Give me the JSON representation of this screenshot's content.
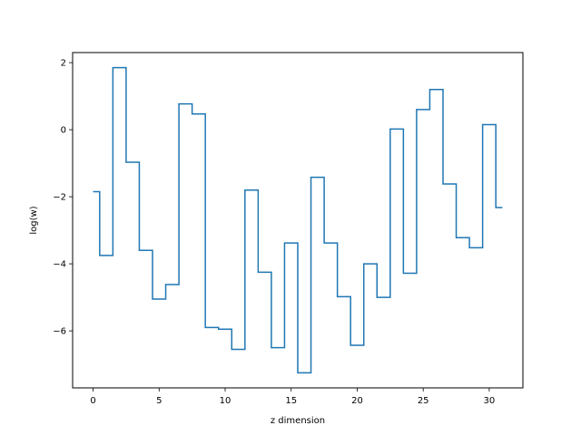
{
  "chart_data": {
    "type": "line",
    "drawstyle": "steps-mid",
    "title": "",
    "xlabel": "z dimension",
    "ylabel": "log(w)",
    "xlim": [
      -1.55,
      32.55
    ],
    "ylim": [
      -7.7,
      2.3
    ],
    "xticks": [
      0,
      5,
      10,
      15,
      20,
      25,
      30
    ],
    "yticks": [
      -6,
      -4,
      -2,
      0,
      2
    ],
    "ytick_labels": [
      "−6",
      "−4",
      "−2",
      "0",
      "2"
    ],
    "grid": false,
    "line_color": "#1f77b4",
    "series": [
      {
        "x": [
          0,
          1,
          2,
          3,
          4,
          5,
          6,
          7,
          8,
          9,
          10,
          11,
          12,
          13,
          14,
          15,
          16,
          17,
          18,
          19,
          20,
          21,
          22,
          23,
          24,
          25,
          26,
          27,
          28,
          29,
          30,
          31
        ],
        "values": [
          -1.85,
          -3.75,
          1.85,
          -0.97,
          -3.6,
          -5.05,
          -4.62,
          0.77,
          0.47,
          -5.9,
          -5.95,
          -6.55,
          -1.8,
          -4.25,
          -6.5,
          -3.38,
          -7.25,
          -1.42,
          -3.38,
          -4.98,
          -6.43,
          -4.0,
          -5.0,
          0.02,
          -4.28,
          0.6,
          1.2,
          -1.62,
          -3.22,
          -3.52,
          0.15,
          -2.32
        ]
      }
    ]
  }
}
